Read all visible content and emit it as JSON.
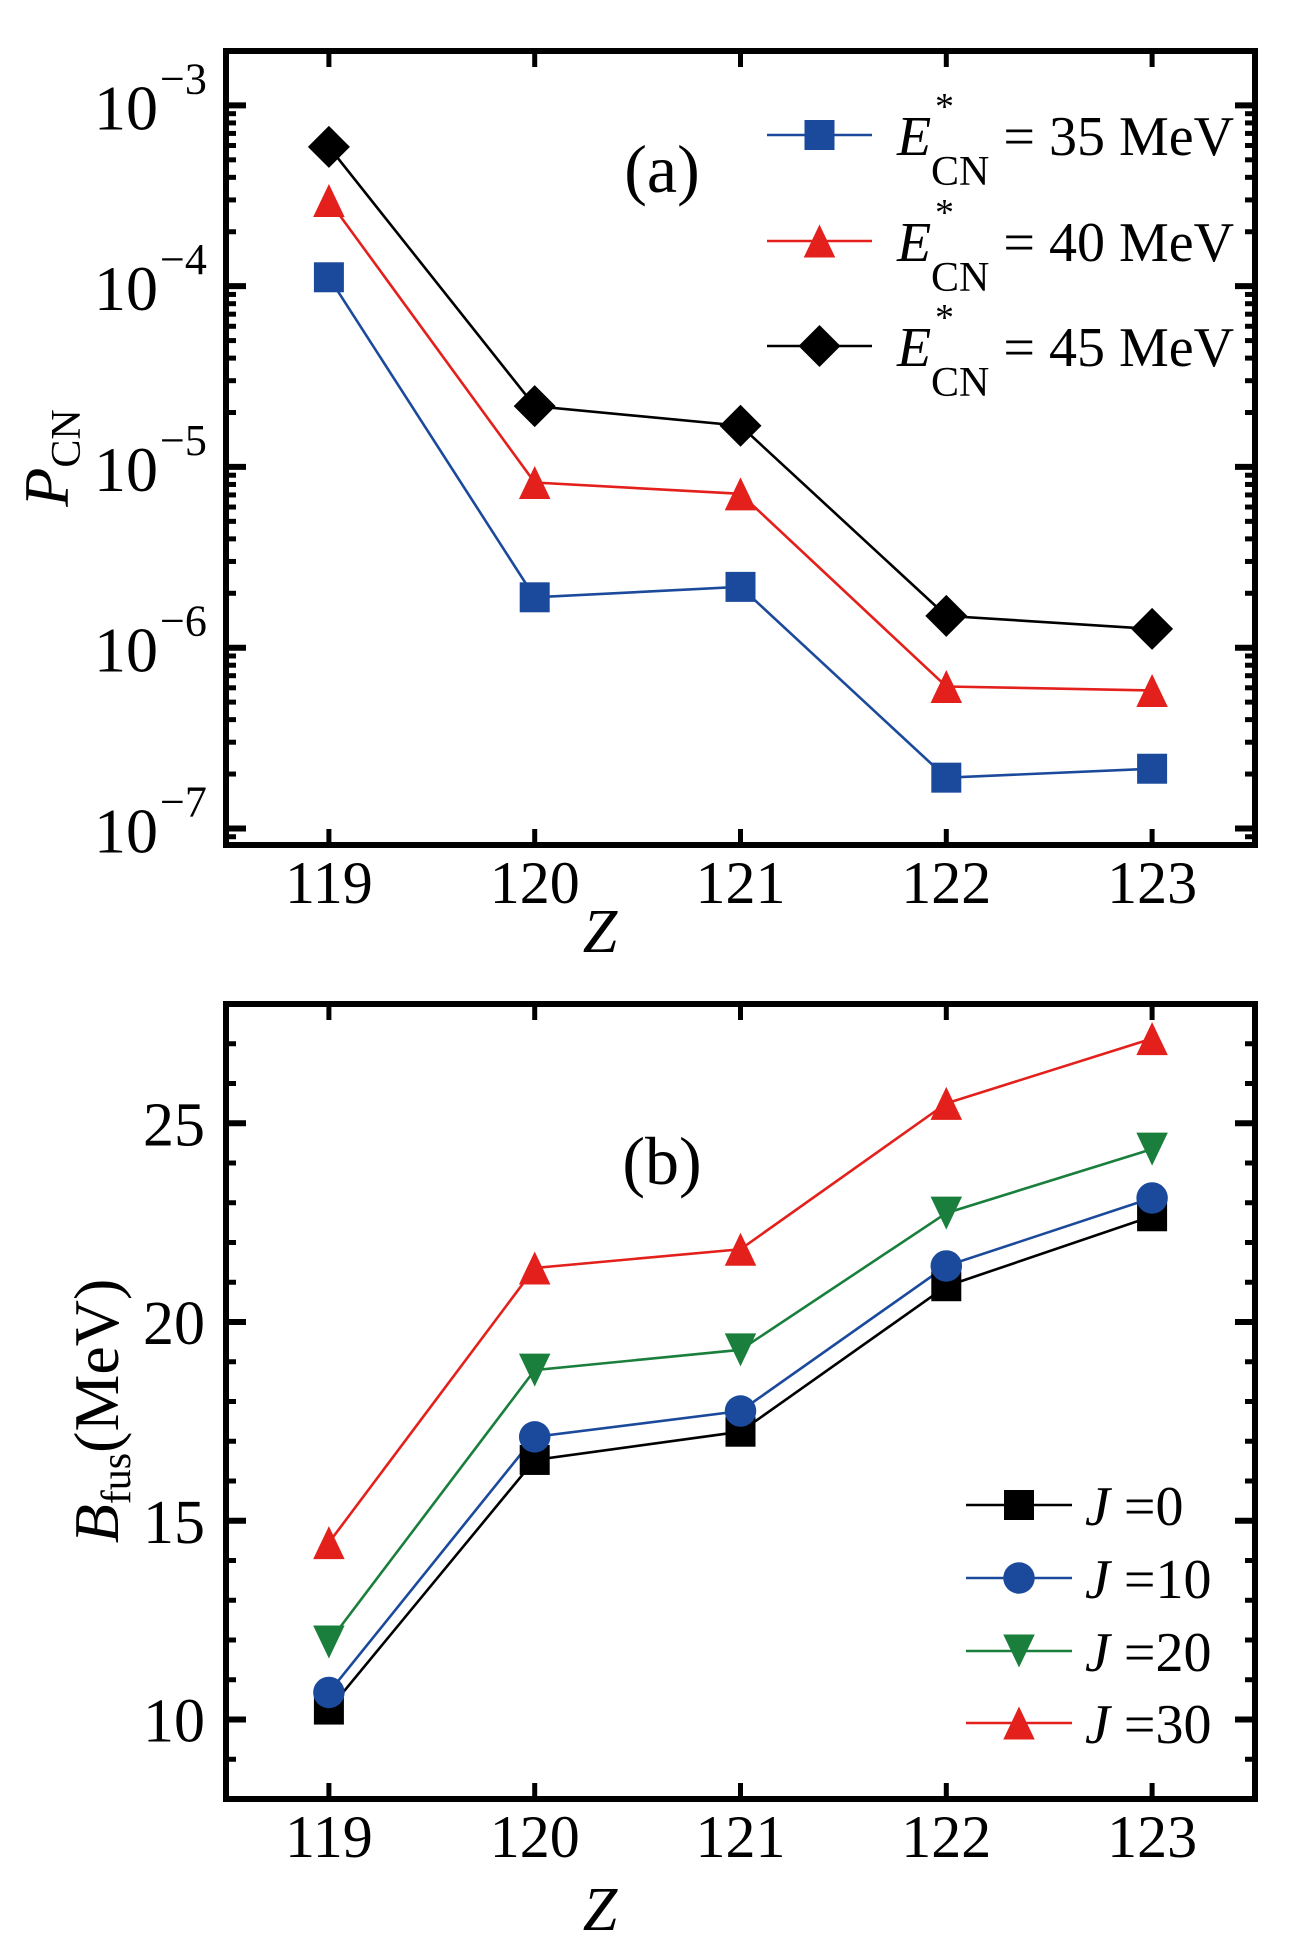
{
  "figure": {
    "panels": [
      "a",
      "b"
    ]
  },
  "chart_data": [
    {
      "type": "line",
      "panel_label": "(a)",
      "title": "",
      "xlabel": "Z",
      "ylabel": "P",
      "ylabel_sub": "CN",
      "yscale": "log",
      "x": [
        119,
        120,
        121,
        122,
        123
      ],
      "x_ticks": [
        "119",
        "120",
        "121",
        "122",
        "123"
      ],
      "xlim": [
        118.5,
        123.5
      ],
      "ylim": [
        8.1e-08,
        0.002
      ],
      "y_ticks": [
        {
          "value": 0.001,
          "base": "10",
          "exp": "−3"
        },
        {
          "value": 0.0001,
          "base": "10",
          "exp": "−4"
        },
        {
          "value": 1e-05,
          "base": "10",
          "exp": "−5"
        },
        {
          "value": 1e-06,
          "base": "10",
          "exp": "−6"
        },
        {
          "value": 1e-07,
          "base": "10",
          "exp": "−7"
        }
      ],
      "grid": false,
      "legend_position": "top-right",
      "series": [
        {
          "name": "E*CN = 35 MeV",
          "label_main": "E",
          "label_sup": "*",
          "label_sub": "CN",
          "label_rest": " = 35 MeV",
          "marker": "square",
          "color": "#1b4a9c",
          "values": [
            0.000112,
            1.9e-06,
            2.17e-06,
            1.91e-07,
            2.14e-07
          ]
        },
        {
          "name": "E*CN = 40 MeV",
          "label_main": "E",
          "label_sup": "*",
          "label_sub": "CN",
          "label_rest": " = 40 MeV",
          "marker": "triangle-up",
          "color": "#e3201b",
          "values": [
            0.000298,
            8.2e-06,
            7.1e-06,
            6.1e-07,
            5.8e-07
          ]
        },
        {
          "name": "E*CN = 45 MeV",
          "label_main": "E",
          "label_sup": "*",
          "label_sub": "CN",
          "label_rest": " = 45 MeV",
          "marker": "diamond",
          "color": "#000000",
          "values": [
            0.00059,
            2.17e-05,
            1.69e-05,
            1.5e-06,
            1.27e-06
          ]
        }
      ]
    },
    {
      "type": "line",
      "panel_label": "(b)",
      "title": "",
      "xlabel": "Z",
      "ylabel": "B",
      "ylabel_sub": "fus",
      "ylabel_rest": "(MeV)",
      "yscale": "linear",
      "x": [
        119,
        120,
        121,
        122,
        123
      ],
      "x_ticks": [
        "119",
        "120",
        "121",
        "122",
        "123"
      ],
      "xlim": [
        118.5,
        123.5
      ],
      "ylim": [
        8,
        28
      ],
      "y_ticks": [
        {
          "value": 10,
          "label": "10"
        },
        {
          "value": 15,
          "label": "15"
        },
        {
          "value": 20,
          "label": "20"
        },
        {
          "value": 25,
          "label": "25"
        }
      ],
      "grid": false,
      "legend_position": "bottom-right",
      "series": [
        {
          "name": "J =0",
          "label_main": "J",
          "label_rest": " =0",
          "marker": "square",
          "color": "#000000",
          "values": [
            10.25,
            16.53,
            17.24,
            20.9,
            22.66
          ]
        },
        {
          "name": "J =10",
          "label_main": "J",
          "label_rest": " =10",
          "marker": "circle",
          "color": "#1b4a9c",
          "values": [
            10.68,
            17.11,
            17.76,
            21.41,
            23.12
          ]
        },
        {
          "name": "J =20",
          "label_main": "J",
          "label_rest": " =20",
          "marker": "triangle-down",
          "color": "#1a7f3c",
          "values": [
            11.95,
            18.79,
            19.3,
            22.74,
            24.35
          ]
        },
        {
          "name": "J =30",
          "label_main": "J",
          "label_rest": " =30",
          "marker": "triangle-up",
          "color": "#e3201b",
          "values": [
            14.45,
            21.36,
            21.83,
            25.5,
            27.13
          ]
        }
      ]
    }
  ]
}
